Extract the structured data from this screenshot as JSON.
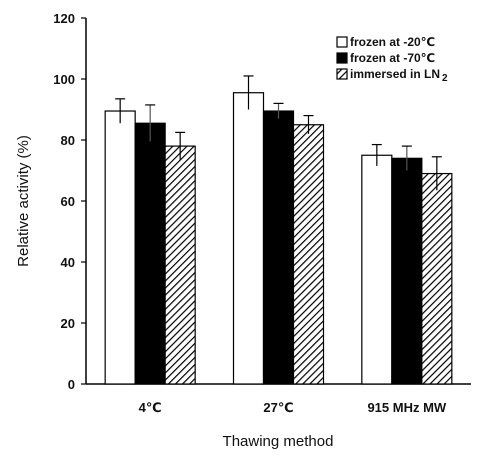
{
  "chart_data": {
    "type": "bar",
    "title": "",
    "xlabel": "Thawing method",
    "ylabel": "Relative activity (%)",
    "categories": [
      "4℃",
      "27℃",
      "915 MHz MW"
    ],
    "ylim": [
      0,
      120
    ],
    "yticks": [
      0,
      20,
      40,
      60,
      80,
      100,
      120
    ],
    "grid": false,
    "legend_position": "top-right",
    "series": [
      {
        "name": "frozen at -20℃",
        "fill": "white",
        "values": [
          89.5,
          95.5,
          75
        ],
        "errors": [
          4,
          5.5,
          3.5
        ]
      },
      {
        "name": "frozen at -70℃",
        "fill": "black",
        "values": [
          85.5,
          89.5,
          74
        ],
        "errors": [
          6,
          2.5,
          4
        ]
      },
      {
        "name_main": "immersed in LN",
        "name_sub": "2",
        "fill": "hatched",
        "values": [
          78,
          85,
          69
        ],
        "errors": [
          4.5,
          3,
          5.5
        ]
      }
    ]
  }
}
